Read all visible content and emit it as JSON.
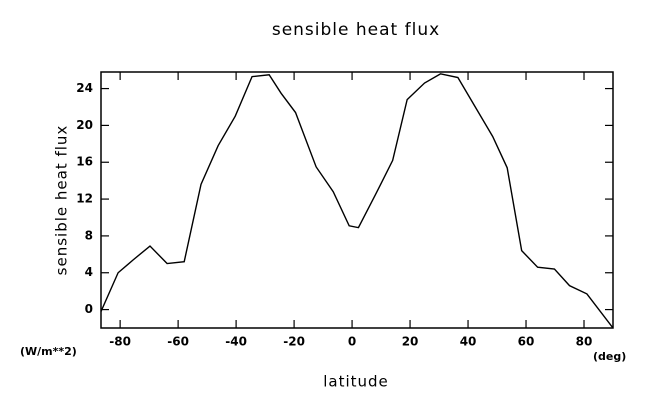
{
  "chart_data": {
    "type": "line",
    "title": "sensible heat flux",
    "x_label": "latitude",
    "y_label": "sensible heat flux",
    "x_unit": "(deg)",
    "y_unit": "(W/m**2)",
    "xlim": [
      -86.6,
      90
    ],
    "ylim": [
      -2,
      25.8
    ],
    "xticks": [
      -80,
      -60,
      -40,
      -20,
      0,
      20,
      40,
      60,
      80
    ],
    "yticks": [
      0,
      4,
      8,
      12,
      16,
      20,
      24
    ],
    "series": [
      {
        "name": "sensible heat flux",
        "color": "#000000",
        "x": [
          -86.6,
          -80.7,
          -75.5,
          -69.7,
          -63.8,
          -57.9,
          -52.1,
          -46.2,
          -40.3,
          -34.5,
          -28.6,
          -24.5,
          -19.5,
          -12.4,
          -6.5,
          -1.0,
          2.2,
          8.1,
          14.0,
          19.0,
          25.0,
          30.5,
          36.5,
          42.5,
          48.5,
          53.5,
          58.5,
          64.0,
          69.8,
          75.0,
          81.0,
          90.0
        ],
        "values": [
          -0.2,
          4.0,
          5.4,
          6.9,
          5.0,
          5.2,
          13.6,
          17.8,
          21.0,
          25.3,
          25.5,
          23.5,
          21.4,
          15.5,
          12.8,
          9.1,
          8.9,
          12.5,
          16.2,
          22.8,
          24.6,
          25.6,
          25.2,
          22.0,
          18.8,
          15.4,
          6.4,
          4.6,
          4.4,
          2.6,
          1.7,
          -2.0
        ]
      }
    ]
  }
}
